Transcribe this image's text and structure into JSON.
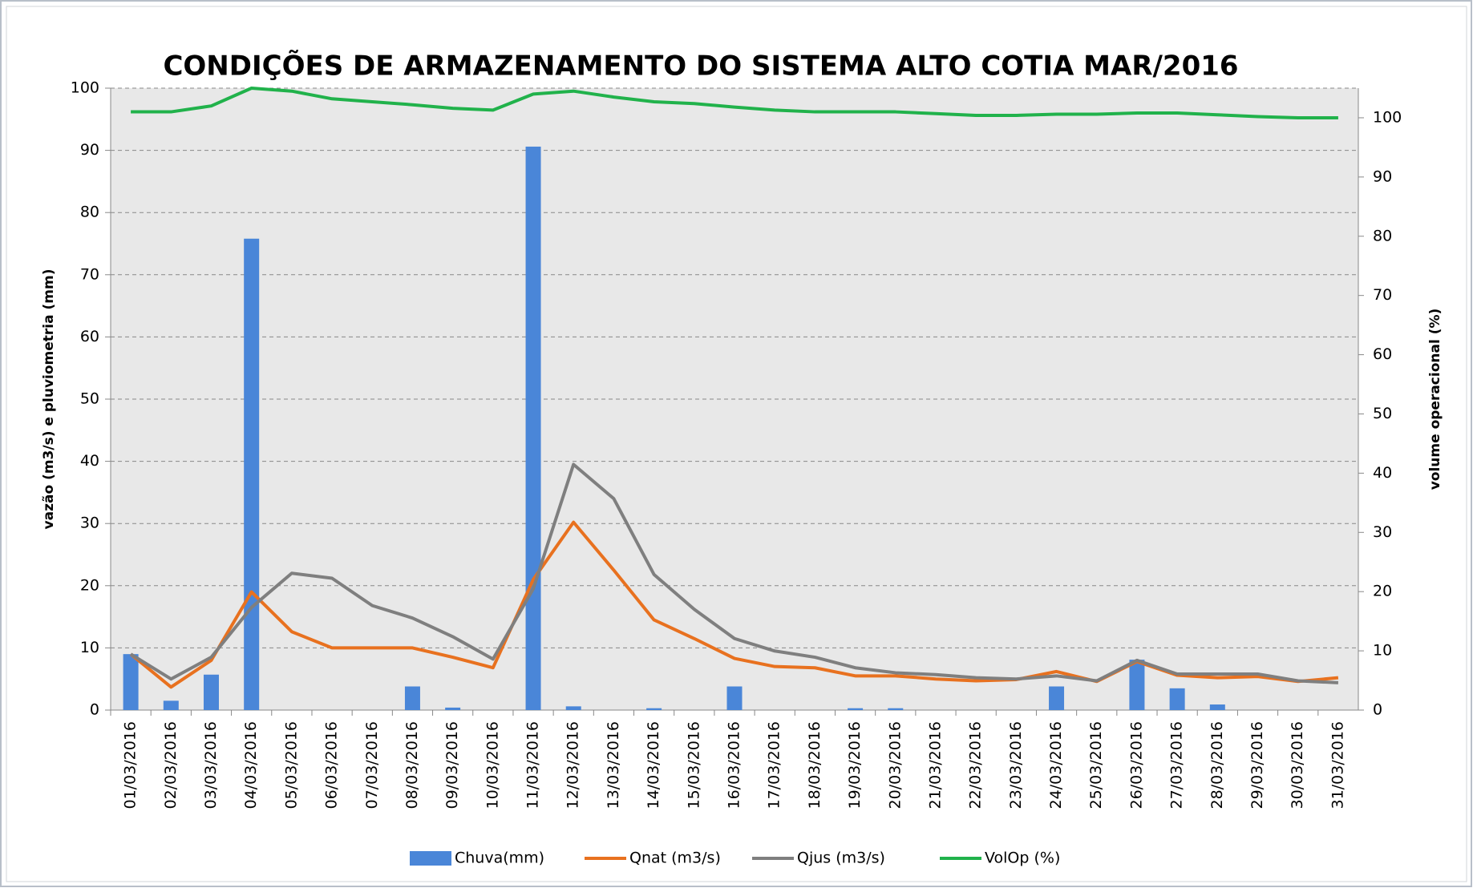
{
  "chart_data": {
    "type": "bar",
    "title": "CONDIÇÕES DE ARMAZENAMENTO  DO SISTEMA ALTO COTIA  MAR/2016",
    "y_label": "vazão  (m3/s) e pluviometria  (mm)",
    "y2_label": "volume operacional  (%)",
    "categories": [
      "01/03/2016",
      "02/03/2016",
      "03/03/2016",
      "04/03/2016",
      "05/03/2016",
      "06/03/2016",
      "07/03/2016",
      "08/03/2016",
      "09/03/2016",
      "10/03/2016",
      "11/03/2016",
      "12/03/2016",
      "13/03/2016",
      "14/03/2016",
      "15/03/2016",
      "16/03/2016",
      "17/03/2016",
      "18/03/2016",
      "19/03/2016",
      "20/03/2016",
      "21/03/2016",
      "22/03/2016",
      "23/03/2016",
      "24/03/2016",
      "25/03/2016",
      "26/03/2016",
      "27/03/2016",
      "28/03/2016",
      "29/03/2016",
      "30/03/2016",
      "31/03/2016"
    ],
    "series": [
      {
        "name": "Chuva(mm)",
        "type": "bar",
        "color": "#4a86d8",
        "values": [
          9,
          1.5,
          5.7,
          75.8,
          0,
          0,
          0,
          3.8,
          0.4,
          0,
          90.6,
          0.6,
          0,
          0.3,
          0,
          3.8,
          0,
          0,
          0.3,
          0.3,
          0,
          0,
          0,
          3.8,
          0,
          8.1,
          3.5,
          0.9,
          0,
          0,
          0
        ]
      },
      {
        "name": "Qnat (m3/s)",
        "type": "line",
        "color": "#e8711f",
        "values": [
          9,
          3.7,
          8,
          19,
          12.6,
          10,
          10,
          10,
          8.5,
          6.8,
          21,
          30.2,
          22.5,
          14.5,
          11.5,
          8.3,
          7,
          6.8,
          5.5,
          5.5,
          5,
          4.7,
          4.9,
          6.2,
          4.6,
          7.8,
          5.6,
          5.2,
          5.4,
          4.6,
          5.2
        ]
      },
      {
        "name": "Qjus (m3/s)",
        "type": "line",
        "color": "#7f7f7f",
        "values": [
          9,
          5,
          8.5,
          16.5,
          22,
          21.2,
          16.8,
          14.8,
          11.8,
          8.2,
          19.5,
          39.5,
          34,
          21.8,
          16.2,
          11.5,
          9.5,
          8.5,
          6.8,
          6,
          5.7,
          5.2,
          5,
          5.5,
          4.7,
          8,
          5.8,
          5.8,
          5.8,
          4.7,
          4.4
        ]
      },
      {
        "name": "VolOp (%)",
        "type": "line",
        "axis": "y2",
        "color": "#21b24b",
        "values": [
          101,
          101,
          102,
          105,
          104.5,
          103.2,
          102.7,
          102.2,
          101.6,
          101.3,
          104,
          104.5,
          103.5,
          102.7,
          102.4,
          101.8,
          101.3,
          101,
          101,
          101,
          100.7,
          100.4,
          100.4,
          100.6,
          100.6,
          100.8,
          100.8,
          100.5,
          100.2,
          100,
          100
        ]
      }
    ],
    "ylim": [
      0,
      100
    ],
    "yticks": [
      0,
      10,
      20,
      30,
      40,
      50,
      60,
      70,
      80,
      90,
      100
    ],
    "y2lim": [
      0,
      105
    ],
    "y2ticks": [
      0,
      10,
      20,
      30,
      40,
      50,
      60,
      70,
      80,
      90,
      100
    ],
    "grid": true,
    "legend": "bottom"
  }
}
